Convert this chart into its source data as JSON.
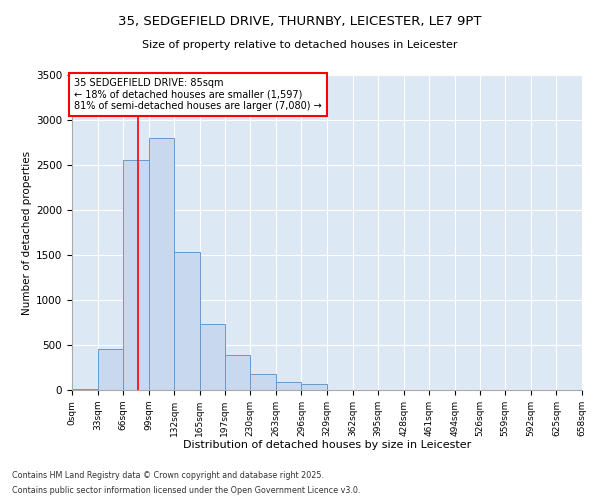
{
  "title1": "35, SEDGEFIELD DRIVE, THURNBY, LEICESTER, LE7 9PT",
  "title2": "Size of property relative to detached houses in Leicester",
  "xlabel": "Distribution of detached houses by size in Leicester",
  "ylabel": "Number of detached properties",
  "bar_color": "#c8d8ee",
  "bar_edge_color": "#6699cc",
  "background_color": "#dde8f5",
  "annotation_text": "35 SEDGEFIELD DRIVE: 85sqm\n← 18% of detached houses are smaller (1,597)\n81% of semi-detached houses are larger (7,080) →",
  "red_line_x": 85,
  "footer1": "Contains HM Land Registry data © Crown copyright and database right 2025.",
  "footer2": "Contains public sector information licensed under the Open Government Licence v3.0.",
  "bins": [
    0,
    33,
    66,
    99,
    132,
    165,
    197,
    230,
    263,
    296,
    329,
    362,
    395,
    428,
    461,
    494,
    526,
    559,
    592,
    625,
    658
  ],
  "bin_labels": [
    "0sqm",
    "33sqm",
    "66sqm",
    "99sqm",
    "132sqm",
    "165sqm",
    "197sqm",
    "230sqm",
    "263sqm",
    "296sqm",
    "329sqm",
    "362sqm",
    "395sqm",
    "428sqm",
    "461sqm",
    "494sqm",
    "526sqm",
    "559sqm",
    "592sqm",
    "625sqm",
    "658sqm"
  ],
  "counts": [
    10,
    460,
    2550,
    2800,
    1530,
    730,
    390,
    175,
    90,
    70,
    0,
    0,
    0,
    0,
    0,
    0,
    0,
    0,
    0,
    0
  ],
  "ylim": [
    0,
    3500
  ],
  "yticks": [
    0,
    500,
    1000,
    1500,
    2000,
    2500,
    3000,
    3500
  ]
}
